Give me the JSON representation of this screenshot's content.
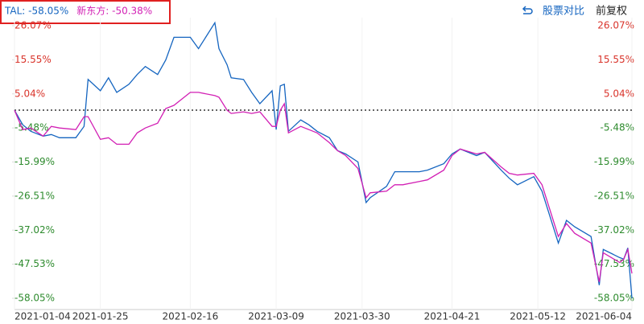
{
  "chart_data": {
    "type": "line",
    "toolbar": [
      "股票对比",
      "前复权"
    ],
    "xlim": [
      "2021-01-04",
      "2021-06-04"
    ],
    "xticks": [
      "2021-01-04",
      "2021-01-25",
      "2021-02-16",
      "2021-03-09",
      "2021-03-30",
      "2021-04-21",
      "2021-05-12",
      "2021-06-04"
    ],
    "ylim": [
      -58.05,
      26.07
    ],
    "yticks": [
      {
        "value": 26.07,
        "label": "26.07%"
      },
      {
        "value": 15.55,
        "label": "15.55%"
      },
      {
        "value": 5.04,
        "label": "5.04%"
      },
      {
        "value": -5.48,
        "label": "-5.48%"
      },
      {
        "value": -15.99,
        "label": "-15.99%"
      },
      {
        "value": -26.51,
        "label": "-26.51%"
      },
      {
        "value": -37.02,
        "label": "-37.02%"
      },
      {
        "value": -47.53,
        "label": "-47.53%"
      },
      {
        "value": -58.05,
        "label": "-58.05%"
      }
    ],
    "x": [
      "2021-01-04",
      "2021-01-06",
      "2021-01-08",
      "2021-01-11",
      "2021-01-13",
      "2021-01-15",
      "2021-01-19",
      "2021-01-21",
      "2021-01-22",
      "2021-01-25",
      "2021-01-27",
      "2021-01-29",
      "2021-02-01",
      "2021-02-03",
      "2021-02-05",
      "2021-02-08",
      "2021-02-10",
      "2021-02-12",
      "2021-02-16",
      "2021-02-18",
      "2021-02-22",
      "2021-02-23",
      "2021-02-25",
      "2021-02-26",
      "2021-03-01",
      "2021-03-03",
      "2021-03-05",
      "2021-03-08",
      "2021-03-09",
      "2021-03-10",
      "2021-03-11",
      "2021-03-12",
      "2021-03-15",
      "2021-03-17",
      "2021-03-19",
      "2021-03-22",
      "2021-03-24",
      "2021-03-26",
      "2021-03-29",
      "2021-03-31",
      "2021-04-01",
      "2021-04-05",
      "2021-04-07",
      "2021-04-09",
      "2021-04-13",
      "2021-04-15",
      "2021-04-19",
      "2021-04-21",
      "2021-04-23",
      "2021-04-27",
      "2021-04-29",
      "2021-05-03",
      "2021-05-05",
      "2021-05-07",
      "2021-05-11",
      "2021-05-13",
      "2021-05-17",
      "2021-05-19",
      "2021-05-21",
      "2021-05-25",
      "2021-05-27",
      "2021-05-28",
      "2021-06-01",
      "2021-06-02",
      "2021-06-03",
      "2021-06-04"
    ],
    "series": [
      {
        "name": "TAL: -58.05%",
        "color": "#1565c0",
        "values": [
          0,
          -4.5,
          -6.5,
          -8,
          -7.5,
          -8.5,
          -8.5,
          -5,
          9.5,
          6,
          10,
          5.5,
          8,
          11,
          13.5,
          11,
          15.5,
          22.5,
          22.5,
          19,
          27,
          19,
          14,
          10,
          9.5,
          5.5,
          2,
          6,
          -6,
          7.5,
          8,
          -6.5,
          -3,
          -4.5,
          -6.5,
          -8.5,
          -12.5,
          -13.5,
          -16,
          -28.5,
          -27,
          -23.5,
          -19,
          -19,
          -19,
          -18.5,
          -16.5,
          -13.5,
          -12,
          -14,
          -13,
          -18.5,
          -21,
          -23,
          -20.5,
          -25,
          -41,
          -34,
          -36,
          -39,
          -54,
          -43,
          -45.5,
          -46,
          -42.5,
          -58.05
        ]
      },
      {
        "name": "新东方: -50.38%",
        "color": "#d21fb4",
        "values": [
          0,
          -6,
          -5.5,
          -8,
          -5,
          -5.5,
          -6,
          -2,
          -2,
          -9,
          -8.5,
          -10.5,
          -10.5,
          -7,
          -5.5,
          -4,
          0.5,
          1.5,
          5.5,
          5.5,
          4.5,
          4,
          0,
          -1,
          -0.5,
          -1,
          -0.5,
          -5,
          -5,
          0,
          2,
          -7,
          -5,
          -6,
          -7,
          -10,
          -12.5,
          -14,
          -18,
          -27,
          -25.5,
          -25,
          -23,
          -23,
          -22,
          -21.5,
          -18.5,
          -14,
          -12,
          -13.5,
          -13,
          -17.5,
          -19.5,
          -20,
          -19.5,
          -23,
          -39,
          -35,
          -38,
          -41,
          -53,
          -44,
          -47,
          -46,
          -43,
          -50.38
        ]
      }
    ]
  }
}
